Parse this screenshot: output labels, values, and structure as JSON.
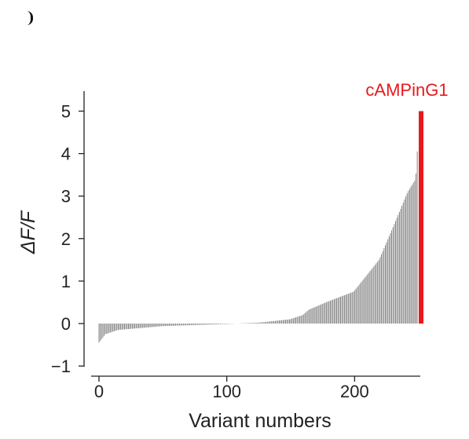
{
  "chart_data": {
    "type": "bar",
    "ylabel": "ΔF/F",
    "xlabel": "Variant numbers",
    "xlim": [
      0,
      250
    ],
    "ylim": [
      -1,
      5.3
    ],
    "xticks": [
      "0",
      "100",
      "200"
    ],
    "xtick_values": [
      0,
      100,
      200
    ],
    "yticks": [
      "−1",
      "0",
      "1",
      "2",
      "3",
      "4",
      "5"
    ],
    "ytick_values": [
      -1,
      0,
      1,
      2,
      3,
      4,
      5
    ],
    "grid": false,
    "legend": "none",
    "bar_color": "#777777",
    "sorted_ascending": true,
    "n_variants": 250,
    "value_range": [
      -0.45,
      4.05
    ],
    "highlight": {
      "label": "cAMPinG1",
      "x": 252,
      "value": 5.0,
      "color": "#e8191c"
    }
  }
}
